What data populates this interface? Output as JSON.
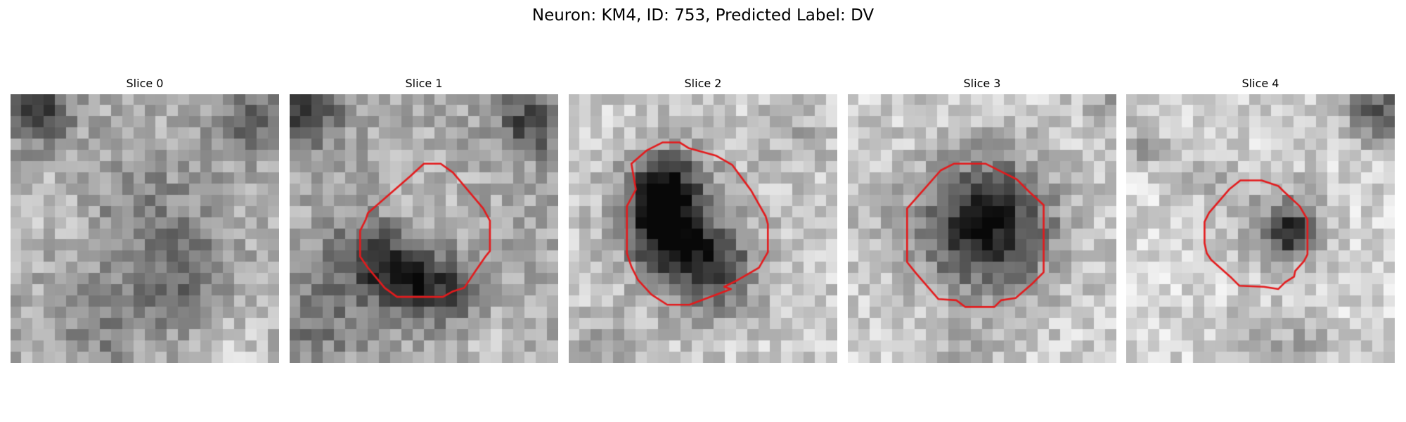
{
  "figure": {
    "title": "Neuron: KM4, ID: 753, Predicted Label: DV"
  },
  "panels": [
    {
      "title": "Slice 0"
    },
    {
      "title": "Slice 1"
    },
    {
      "title": "Slice 2"
    },
    {
      "title": "Slice 3"
    },
    {
      "title": "Slice 4"
    }
  ],
  "colors": {
    "contour": "#e31a1c",
    "background": "#ffffff"
  }
}
